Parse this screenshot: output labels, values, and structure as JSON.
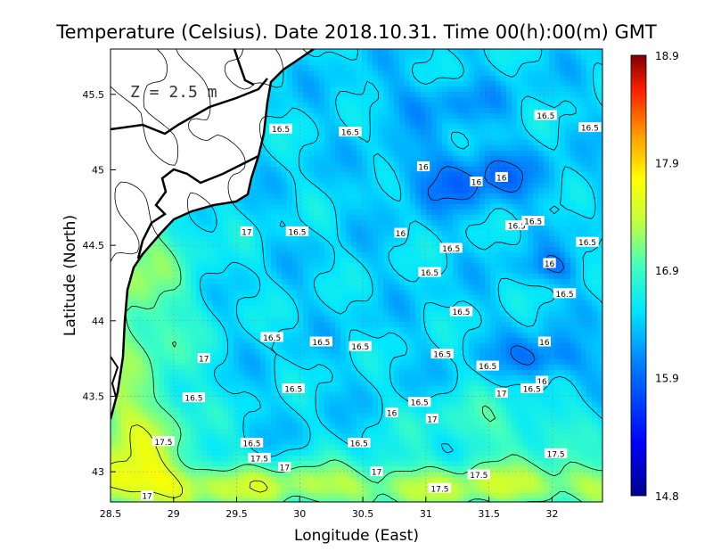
{
  "chart_data": {
    "type": "heatmap",
    "title": "Temperature (Celsius). Date 2018.10.31. Time 00(h):00(m)  GMT",
    "xlabel": "Longitude (East)",
    "ylabel": "Latitude (North)",
    "annotation": "Z = 2.5 m",
    "xlim": [
      28.5,
      32.4
    ],
    "ylim": [
      42.8,
      45.8
    ],
    "x_ticks": [
      "28.5",
      "29",
      "29.5",
      "30",
      "30.5",
      "31",
      "31.5",
      "32"
    ],
    "x_tick_values": [
      28.5,
      29,
      29.5,
      30,
      30.5,
      31,
      31.5,
      32
    ],
    "y_ticks": [
      "43",
      "43.5",
      "44",
      "44.5",
      "45",
      "45.5"
    ],
    "y_tick_values": [
      43,
      43.5,
      44,
      44.5,
      45,
      45.5
    ],
    "grid": true,
    "colorbar": {
      "min": 14.8,
      "max": 18.9,
      "tick_labels": [
        "18.9",
        "17.9",
        "16.9",
        "15.9",
        "14.8"
      ],
      "tick_values": [
        18.9,
        17.9,
        16.9,
        15.9,
        14.8
      ]
    },
    "contour_labels": [
      {
        "text": "16.5",
        "lon": 29.85,
        "lat": 45.27
      },
      {
        "text": "16.5",
        "lon": 30.4,
        "lat": 45.25
      },
      {
        "text": "16.5",
        "lon": 31.95,
        "lat": 45.36
      },
      {
        "text": "16.5",
        "lon": 32.3,
        "lat": 45.28
      },
      {
        "text": "16",
        "lon": 30.98,
        "lat": 45.02
      },
      {
        "text": "16",
        "lon": 31.4,
        "lat": 44.92
      },
      {
        "text": "16",
        "lon": 31.6,
        "lat": 44.95
      },
      {
        "text": "17",
        "lon": 29.58,
        "lat": 44.59
      },
      {
        "text": "16.5",
        "lon": 29.98,
        "lat": 44.59
      },
      {
        "text": "16",
        "lon": 30.8,
        "lat": 44.58
      },
      {
        "text": "16.5",
        "lon": 31.72,
        "lat": 44.63
      },
      {
        "text": "16.5",
        "lon": 31.85,
        "lat": 44.66
      },
      {
        "text": "16.5",
        "lon": 32.28,
        "lat": 44.52
      },
      {
        "text": "16.5",
        "lon": 31.2,
        "lat": 44.48
      },
      {
        "text": "16",
        "lon": 31.98,
        "lat": 44.38
      },
      {
        "text": "16.5",
        "lon": 31.03,
        "lat": 44.32
      },
      {
        "text": "16.5",
        "lon": 32.1,
        "lat": 44.18
      },
      {
        "text": "16.5",
        "lon": 31.28,
        "lat": 44.06
      },
      {
        "text": "16.5",
        "lon": 29.78,
        "lat": 43.89
      },
      {
        "text": "16.5",
        "lon": 30.17,
        "lat": 43.86
      },
      {
        "text": "16.5",
        "lon": 30.48,
        "lat": 43.83
      },
      {
        "text": "16",
        "lon": 31.94,
        "lat": 43.86
      },
      {
        "text": "17",
        "lon": 29.24,
        "lat": 43.75
      },
      {
        "text": "16.5",
        "lon": 31.13,
        "lat": 43.78
      },
      {
        "text": "16.5",
        "lon": 31.49,
        "lat": 43.7
      },
      {
        "text": "16",
        "lon": 31.92,
        "lat": 43.6
      },
      {
        "text": "16.5",
        "lon": 31.84,
        "lat": 43.55
      },
      {
        "text": "17",
        "lon": 31.6,
        "lat": 43.52
      },
      {
        "text": "16.5",
        "lon": 29.95,
        "lat": 43.55
      },
      {
        "text": "16.5",
        "lon": 29.16,
        "lat": 43.49
      },
      {
        "text": "16.5",
        "lon": 30.95,
        "lat": 43.46
      },
      {
        "text": "16",
        "lon": 30.73,
        "lat": 43.39
      },
      {
        "text": "17",
        "lon": 31.05,
        "lat": 43.35
      },
      {
        "text": "17.5",
        "lon": 28.92,
        "lat": 43.2
      },
      {
        "text": "16.5",
        "lon": 29.62,
        "lat": 43.19
      },
      {
        "text": "16.5",
        "lon": 30.47,
        "lat": 43.19
      },
      {
        "text": "17.5",
        "lon": 29.68,
        "lat": 43.09
      },
      {
        "text": "17",
        "lon": 29.88,
        "lat": 43.03
      },
      {
        "text": "17",
        "lon": 30.61,
        "lat": 43.0
      },
      {
        "text": "17.5",
        "lon": 32.03,
        "lat": 43.12
      },
      {
        "text": "17.5",
        "lon": 31.42,
        "lat": 42.98
      },
      {
        "text": "17.5",
        "lon": 31.11,
        "lat": 42.89
      },
      {
        "text": "17",
        "lon": 28.79,
        "lat": 42.84
      }
    ]
  }
}
